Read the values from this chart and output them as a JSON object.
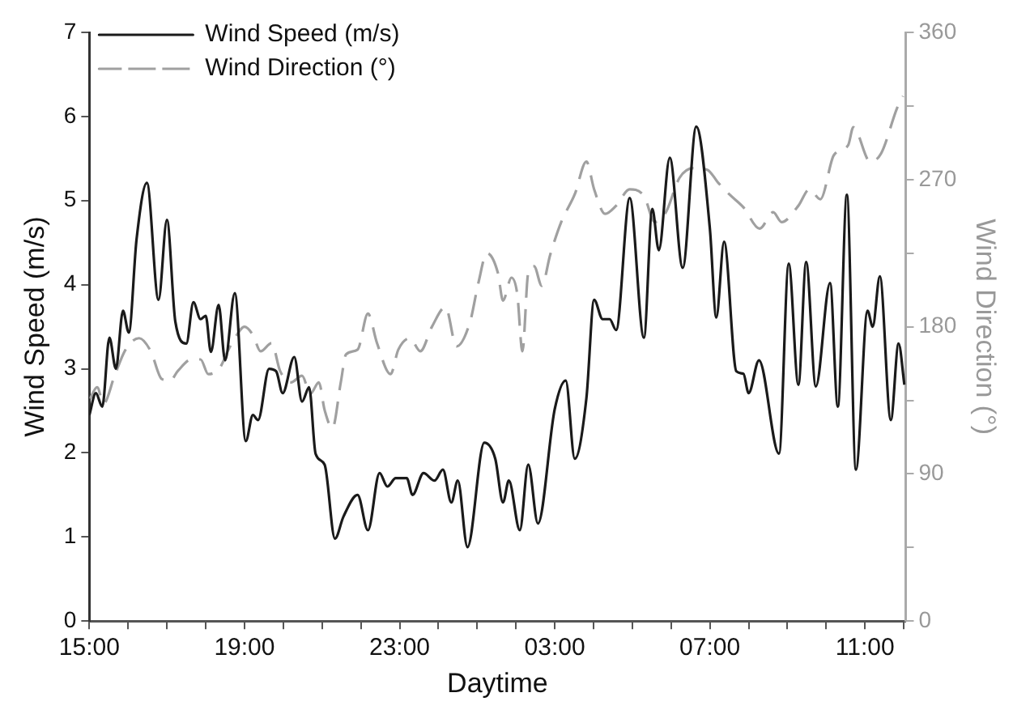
{
  "chart_data": {
    "type": "line",
    "xlabel": "Daytime",
    "ylabel": "Wind Speed (m/s)",
    "y2label": "Wind Direction (°)",
    "xlim": [
      "--01-01T15:00",
      "--01-02T12:03"
    ],
    "xticks": [
      {
        "value": "--01-01T15:00",
        "label": "15:00"
      },
      {
        "value": "--01-01T16:00",
        "label": null
      },
      {
        "value": "--01-01T17:00",
        "label": null
      },
      {
        "value": "--01-01T18:00",
        "label": null
      },
      {
        "value": "--01-01T19:00",
        "label": "19:00"
      },
      {
        "value": "--01-01T20:00",
        "label": null
      },
      {
        "value": "--01-01T21:00",
        "label": null
      },
      {
        "value": "--01-01T22:00",
        "label": null
      },
      {
        "value": "--01-01T23:00",
        "label": "23:00"
      },
      {
        "value": "--01-02T00:00",
        "label": null
      },
      {
        "value": "--01-02T01:00",
        "label": null
      },
      {
        "value": "--01-02T02:00",
        "label": null
      },
      {
        "value": "--01-02T03:00",
        "label": "03:00"
      },
      {
        "value": "--01-02T04:00",
        "label": null
      },
      {
        "value": "--01-02T05:00",
        "label": null
      },
      {
        "value": "--01-02T06:00",
        "label": null
      },
      {
        "value": "--01-02T07:00",
        "label": "07:00"
      },
      {
        "value": "--01-02T08:00",
        "label": null
      },
      {
        "value": "--01-02T09:00",
        "label": null
      },
      {
        "value": "--01-02T10:00",
        "label": null
      },
      {
        "value": "--01-02T11:00",
        "label": "11:00"
      },
      {
        "value": "--01-02T12:00",
        "label": null
      }
    ],
    "ylim": [
      0,
      7
    ],
    "yticks": [
      0,
      1,
      2,
      3,
      4,
      5,
      6,
      7
    ],
    "y2lim": [
      0,
      360
    ],
    "y2ticks": [
      0,
      {
        "value": 45,
        "label": null
      },
      90,
      {
        "value": 135,
        "label": null
      },
      180,
      {
        "value": 225,
        "label": null
      },
      270,
      {
        "value": 315,
        "label": null
      },
      360
    ],
    "grid": false,
    "legend": "top left",
    "marker": "none",
    "series": [
      {
        "name": "Wind Speed (m/s)",
        "color": "#1a1a1a",
        "line_style": "solid",
        "x": [
          "--01-01T15:00",
          "--01-01T15:10",
          "--01-01T15:20",
          "--01-01T15:31",
          "--01-01T15:41",
          "--01-01T15:52",
          "--01-01T16:01",
          "--01-01T16:13",
          "--01-01T16:29",
          "--01-01T16:47",
          "--01-01T17:00",
          "--01-01T17:13",
          "--01-01T17:30",
          "--01-01T17:41",
          "--01-01T17:52",
          "--01-01T18:00",
          "--01-01T18:08",
          "--01-01T18:20",
          "--01-01T18:30",
          "--01-01T18:45",
          "--01-01T19:02",
          "--01-01T19:13",
          "--01-01T19:21",
          "--01-01T19:38",
          "--01-01T19:49",
          "--01-01T19:59",
          "--01-01T20:17",
          "--01-01T20:29",
          "--01-01T20:40",
          "--01-01T20:50",
          "--01-01T21:04",
          "--01-01T21:20",
          "--01-01T21:33",
          "--01-01T21:55",
          "--01-01T22:11",
          "--01-01T22:29",
          "--01-01T22:41",
          "--01-01T22:54",
          "--01-01T23:11",
          "--01-01T23:20",
          "--01-01T23:37",
          "--01-01T23:54",
          "--01-02T00:07",
          "--01-02T00:20",
          "--01-02T00:30",
          "--01-02T00:45",
          "--01-02T01:11",
          "--01-02T01:28",
          "--01-02T01:40",
          "--01-02T01:49",
          "--01-02T02:06",
          "--01-02T02:19",
          "--01-02T02:34",
          "--01-02T03:00",
          "--01-02T03:17",
          "--01-02T03:31",
          "--01-02T03:49",
          "--01-02T04:01",
          "--01-02T04:14",
          "--01-02T04:25",
          "--01-02T04:35",
          "--01-02T04:56",
          "--01-02T05:18",
          "--01-02T05:31",
          "--01-02T05:41",
          "--01-02T05:58",
          "--01-02T06:18",
          "--01-02T06:39",
          "--01-02T07:00",
          "--01-02T07:10",
          "--01-02T07:22",
          "--01-02T07:41",
          "--01-02T07:52",
          "--01-02T08:00",
          "--01-02T08:16",
          "--01-02T08:47",
          "--01-02T09:02",
          "--01-02T09:17",
          "--01-02T09:29",
          "--01-02T09:44",
          "--01-02T10:06",
          "--01-02T10:18",
          "--01-02T10:32",
          "--01-02T10:46",
          "--01-02T11:04",
          "--01-02T11:12",
          "--01-02T11:23",
          "--01-02T11:40",
          "--01-02T11:52",
          "--01-02T12:01"
        ],
        "values": [
          2.45,
          2.71,
          2.55,
          3.37,
          3.0,
          3.69,
          3.43,
          4.54,
          5.21,
          3.82,
          4.77,
          3.56,
          3.3,
          3.79,
          3.59,
          3.63,
          3.2,
          3.76,
          3.1,
          3.9,
          2.14,
          2.45,
          2.39,
          3.0,
          2.97,
          2.71,
          3.14,
          2.61,
          2.78,
          1.99,
          1.86,
          0.98,
          1.24,
          1.5,
          1.08,
          1.76,
          1.6,
          1.7,
          1.7,
          1.5,
          1.76,
          1.67,
          1.8,
          1.41,
          1.67,
          0.88,
          2.12,
          1.93,
          1.41,
          1.67,
          1.08,
          1.86,
          1.16,
          2.52,
          2.86,
          1.93,
          2.65,
          3.82,
          3.59,
          3.59,
          3.46,
          5.03,
          3.37,
          4.9,
          4.41,
          5.51,
          4.2,
          5.88,
          4.67,
          3.61,
          4.51,
          2.97,
          2.94,
          2.71,
          3.1,
          1.99,
          4.25,
          2.81,
          4.27,
          2.79,
          4.02,
          2.55,
          5.07,
          1.8,
          3.69,
          3.5,
          4.1,
          2.39,
          3.3,
          2.81
        ]
      },
      {
        "name": "Wind Direction (°)",
        "color": "#a0a0a0",
        "line_style": "dashed",
        "axis": "y2",
        "x": [
          "--01-01T15:01",
          "--01-01T15:12",
          "--01-01T15:22",
          "--01-01T15:39",
          "--01-01T15:56",
          "--01-01T16:17",
          "--01-01T16:35",
          "--01-01T16:52",
          "--01-01T17:05",
          "--01-01T17:17",
          "--01-01T17:38",
          "--01-01T17:52",
          "--01-01T18:04",
          "--01-01T18:22",
          "--01-01T18:34",
          "--01-01T18:45",
          "--01-01T19:00",
          "--01-01T19:13",
          "--01-01T19:25",
          "--01-01T19:42",
          "--01-01T19:55",
          "--01-01T20:12",
          "--01-01T20:29",
          "--01-01T20:42",
          "--01-01T20:55",
          "--01-01T21:04",
          "--01-01T21:16",
          "--01-01T21:29",
          "--01-01T21:37",
          "--01-01T21:55",
          "--01-01T22:11",
          "--01-01T22:25",
          "--01-01T22:46",
          "--01-01T22:58",
          "--01-01T23:16",
          "--01-01T23:32",
          "--01-01T23:50",
          "--01-02T00:11",
          "--01-02T00:28",
          "--01-02T00:49",
          "--01-02T01:02",
          "--01-02T01:15",
          "--01-02T01:32",
          "--01-02T01:40",
          "--01-02T01:53",
          "--01-02T02:02",
          "--01-02T02:10",
          "--01-02T02:19",
          "--01-02T02:28",
          "--01-02T02:40",
          "--01-02T02:53",
          "--01-02T03:10",
          "--01-02T03:31",
          "--01-02T03:49",
          "--01-02T04:01",
          "--01-02T04:18",
          "--01-02T04:35",
          "--01-02T04:56",
          "--01-02T05:18",
          "--01-02T05:35",
          "--01-02T05:52",
          "--01-02T06:13",
          "--01-02T06:35",
          "--01-02T06:56",
          "--01-02T07:13",
          "--01-02T07:30",
          "--01-02T07:52",
          "--01-02T08:17",
          "--01-02T08:38",
          "--01-02T08:51",
          "--01-02T09:17",
          "--01-02T09:34",
          "--01-02T09:51",
          "--01-02T10:12",
          "--01-02T10:34",
          "--01-02T10:42",
          "--01-02T11:08",
          "--01-02T11:25",
          "--01-02T11:50",
          "--01-02T11:59"
        ],
        "values": [
          136,
          143,
          133,
          150,
          166,
          173,
          165,
          148,
          147,
          153,
          160,
          160,
          151,
          155,
          165,
          173,
          180,
          175,
          165,
          170,
          153,
          146,
          150,
          139,
          146,
          129,
          118,
          146,
          163,
          166,
          188,
          170,
          151,
          166,
          173,
          165,
          180,
          192,
          168,
          183,
          207,
          225,
          213,
          196,
          210,
          200,
          165,
          213,
          217,
          205,
          224,
          244,
          261,
          281,
          264,
          249,
          254,
          264,
          260,
          244,
          250,
          271,
          277,
          276,
          268,
          261,
          253,
          240,
          250,
          244,
          254,
          264,
          258,
          285,
          291,
          302,
          281,
          286,
          314,
          321
        ]
      }
    ]
  }
}
